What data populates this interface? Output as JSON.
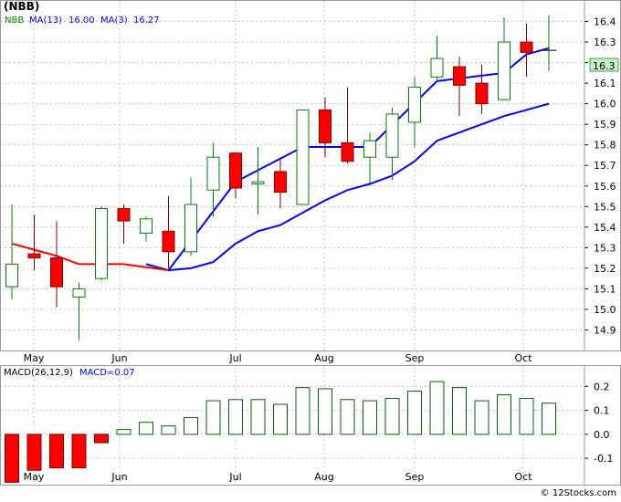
{
  "chart_title": "(NBB)",
  "footer": "© 12Stocks.com",
  "colors": {
    "up": "#008000",
    "down": "#ff0000",
    "ma_short": "#0000ff",
    "ma_long": "#0000ff",
    "ma3_segment_down": "#ff0000",
    "macd_hist_pos": "#006400",
    "macd_hist_neg": "#ff0000",
    "grid": "#999999",
    "last_price_bg": "#c8f0c8"
  },
  "legend": {
    "symbol": "NBB",
    "ma13_label": "MA(13)",
    "ma13_value": "16.00",
    "ma3_label": "MA(3)",
    "ma3_value": "16.27"
  },
  "last_price_label": "16.3",
  "macd_legend": {
    "label": "MACD(26,12,9)",
    "value_label": "MACD=0.07"
  },
  "chart_data": [
    {
      "type": "candlestick",
      "title": "(NBB)",
      "interval": "weekly",
      "ylim": [
        14.8,
        16.5
      ],
      "y_ticks": [
        "14.9",
        "15.0",
        "15.1",
        "15.2",
        "15.3",
        "15.4",
        "15.5",
        "15.6",
        "15.7",
        "15.8",
        "15.9",
        "16.0",
        "16.1",
        "16.2",
        "16.3",
        "16.4"
      ],
      "x_month_labels": [
        "May",
        "Jun",
        "Jul",
        "Aug",
        "Sep",
        "Oct"
      ],
      "grid": true,
      "candles": [
        {
          "o": 15.11,
          "h": 15.51,
          "l": 15.05,
          "c": 15.22
        },
        {
          "o": 15.27,
          "h": 15.46,
          "l": 15.19,
          "c": 15.25
        },
        {
          "o": 15.25,
          "h": 15.43,
          "l": 15.01,
          "c": 15.11
        },
        {
          "o": 15.06,
          "h": 15.13,
          "l": 14.85,
          "c": 15.1
        },
        {
          "o": 15.15,
          "h": 15.5,
          "l": 15.14,
          "c": 15.49
        },
        {
          "o": 15.49,
          "h": 15.51,
          "l": 15.32,
          "c": 15.43
        },
        {
          "o": 15.37,
          "h": 15.45,
          "l": 15.33,
          "c": 15.44
        },
        {
          "o": 15.38,
          "h": 15.55,
          "l": 15.2,
          "c": 15.28
        },
        {
          "o": 15.28,
          "h": 15.64,
          "l": 15.26,
          "c": 15.51
        },
        {
          "o": 15.58,
          "h": 15.81,
          "l": 15.45,
          "c": 15.74
        },
        {
          "o": 15.76,
          "h": 15.76,
          "l": 15.54,
          "c": 15.59
        },
        {
          "o": 15.61,
          "h": 15.79,
          "l": 15.46,
          "c": 15.62
        },
        {
          "o": 15.67,
          "h": 15.74,
          "l": 15.49,
          "c": 15.57
        },
        {
          "o": 15.51,
          "h": 15.97,
          "l": 15.51,
          "c": 15.97
        },
        {
          "o": 15.97,
          "h": 16.03,
          "l": 15.74,
          "c": 15.81
        },
        {
          "o": 15.81,
          "h": 16.08,
          "l": 15.71,
          "c": 15.72
        },
        {
          "o": 15.74,
          "h": 15.86,
          "l": 15.6,
          "c": 15.82
        },
        {
          "o": 15.74,
          "h": 15.98,
          "l": 15.63,
          "c": 15.95
        },
        {
          "o": 15.91,
          "h": 16.13,
          "l": 15.79,
          "c": 16.08
        },
        {
          "o": 16.13,
          "h": 16.33,
          "l": 16.11,
          "c": 16.22
        },
        {
          "o": 16.18,
          "h": 16.23,
          "l": 15.94,
          "c": 16.09
        },
        {
          "o": 16.1,
          "h": 16.19,
          "l": 15.95,
          "c": 16.0
        },
        {
          "o": 16.02,
          "h": 16.42,
          "l": 16.02,
          "c": 16.3
        },
        {
          "o": 16.3,
          "h": 16.39,
          "l": 16.13,
          "c": 16.25
        },
        {
          "o": 16.26,
          "h": 16.43,
          "l": 16.16,
          "c": 16.26
        }
      ],
      "ma13": [
        null,
        null,
        null,
        null,
        null,
        null,
        15.22,
        15.19,
        15.2,
        15.23,
        15.32,
        15.38,
        15.41,
        15.47,
        15.53,
        15.58,
        15.61,
        15.65,
        15.72,
        15.82,
        15.86,
        15.9,
        15.94,
        15.97,
        16.0
      ],
      "ma3": [
        15.32,
        15.29,
        15.26,
        15.22,
        15.22,
        15.22,
        null,
        15.19,
        null,
        null,
        15.62,
        null,
        null,
        15.79,
        null,
        null,
        15.79,
        null,
        null,
        16.11,
        null,
        null,
        16.15,
        16.24,
        16.27
      ]
    },
    {
      "type": "bar",
      "title": "MACD(26,12,9)",
      "ylim": [
        -0.21,
        0.285
      ],
      "y_ticks": [
        "-0.1",
        "0.0",
        "0.1",
        "0.2"
      ],
      "x_month_labels": [
        "May",
        "Jun",
        "Jul",
        "Aug",
        "Sep",
        "Oct"
      ],
      "grid": true,
      "values": [
        -0.2,
        -0.15,
        -0.14,
        -0.14,
        -0.035,
        0.02,
        0.05,
        0.035,
        0.07,
        0.14,
        0.145,
        0.145,
        0.125,
        0.195,
        0.19,
        0.145,
        0.14,
        0.15,
        0.18,
        0.22,
        0.195,
        0.14,
        0.165,
        0.15,
        0.13
      ]
    }
  ]
}
